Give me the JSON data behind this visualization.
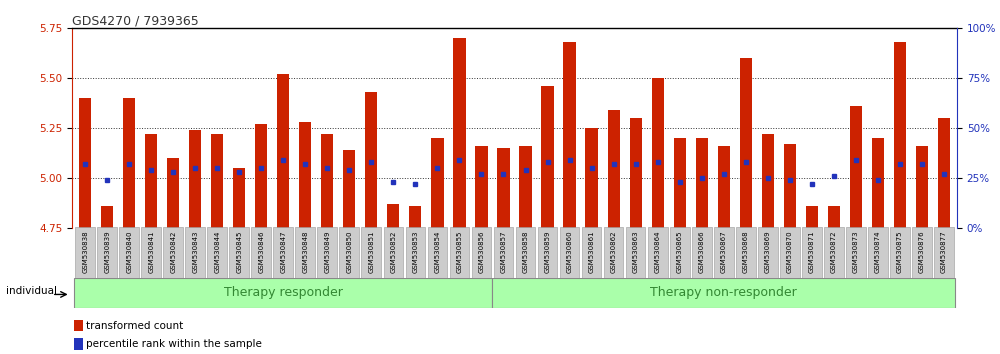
{
  "title": "GDS4270 / 7939365",
  "samples": [
    "GSM530838",
    "GSM530839",
    "GSM530840",
    "GSM530841",
    "GSM530842",
    "GSM530843",
    "GSM530844",
    "GSM530845",
    "GSM530846",
    "GSM530847",
    "GSM530848",
    "GSM530849",
    "GSM530850",
    "GSM530851",
    "GSM530852",
    "GSM530853",
    "GSM530854",
    "GSM530855",
    "GSM530856",
    "GSM530857",
    "GSM530858",
    "GSM530859",
    "GSM530860",
    "GSM530861",
    "GSM530862",
    "GSM530863",
    "GSM530864",
    "GSM530865",
    "GSM530866",
    "GSM530867",
    "GSM530868",
    "GSM530869",
    "GSM530870",
    "GSM530871",
    "GSM530872",
    "GSM530873",
    "GSM530874",
    "GSM530875",
    "GSM530876",
    "GSM530877"
  ],
  "bar_values": [
    5.4,
    4.86,
    5.4,
    5.22,
    5.1,
    5.24,
    5.22,
    5.05,
    5.27,
    5.52,
    5.28,
    5.22,
    5.14,
    5.43,
    4.87,
    4.86,
    5.2,
    5.7,
    5.16,
    5.15,
    5.16,
    5.46,
    5.68,
    5.25,
    5.34,
    5.3,
    5.5,
    5.2,
    5.2,
    5.16,
    5.6,
    5.22,
    5.17,
    4.86,
    4.86,
    5.36,
    5.2,
    5.68,
    5.16,
    5.3
  ],
  "percentile_values": [
    32,
    24,
    32,
    29,
    28,
    30,
    30,
    28,
    30,
    34,
    32,
    30,
    29,
    33,
    23,
    22,
    30,
    34,
    27,
    27,
    29,
    33,
    34,
    30,
    32,
    32,
    33,
    23,
    25,
    27,
    33,
    25,
    24,
    22,
    26,
    34,
    24,
    32,
    32,
    27
  ],
  "group_labels": [
    "Therapy responder",
    "Therapy non-responder"
  ],
  "group_split": 19,
  "n_samples": 40,
  "ylim_left": [
    4.75,
    5.75
  ],
  "ylim_right": [
    0,
    100
  ],
  "yticks_left": [
    4.75,
    5.0,
    5.25,
    5.5,
    5.75
  ],
  "yticks_right": [
    0,
    25,
    50,
    75,
    100
  ],
  "bar_color": "#cc2200",
  "dot_color": "#2233bb",
  "group_color": "#aaffaa",
  "group_label_color": "#338833",
  "grid_color": "#333333",
  "title_color": "#333333",
  "tick_label_bg": "#cccccc",
  "left_axis_color": "#cc2200",
  "right_axis_color": "#2233bb"
}
